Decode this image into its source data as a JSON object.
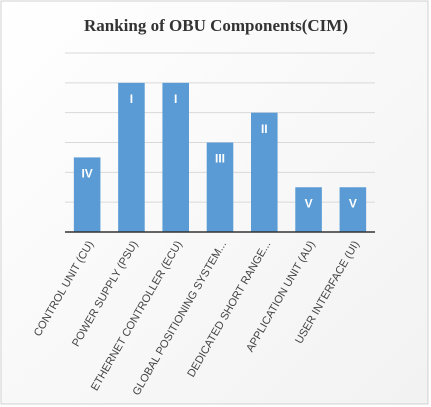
{
  "chart_data": {
    "type": "bar",
    "title": "Ranking of OBU Components(CIM)",
    "categories": [
      "CONTROL UNIT (CU)",
      "POWER SUPPLY (PSU)",
      "ETHERNET CONTROLLER (ECU)",
      "GLOBAL POSITIONING SYSTEM...",
      "DEDICATED SHORT RANGE...",
      "APPLICATION UNIT (AU)",
      "USER INTERFACE (UI)"
    ],
    "values": [
      2.5,
      5,
      5,
      3,
      4,
      1.5,
      1.5
    ],
    "rank_labels": [
      "IV",
      "I",
      "I",
      "III",
      "II",
      "V",
      "V"
    ],
    "color": "#5b9bd5",
    "ylim": [
      0,
      6
    ],
    "yticks": [
      0,
      1,
      2,
      3,
      4,
      5,
      6
    ],
    "grid": true,
    "show_tick_labels": false
  }
}
